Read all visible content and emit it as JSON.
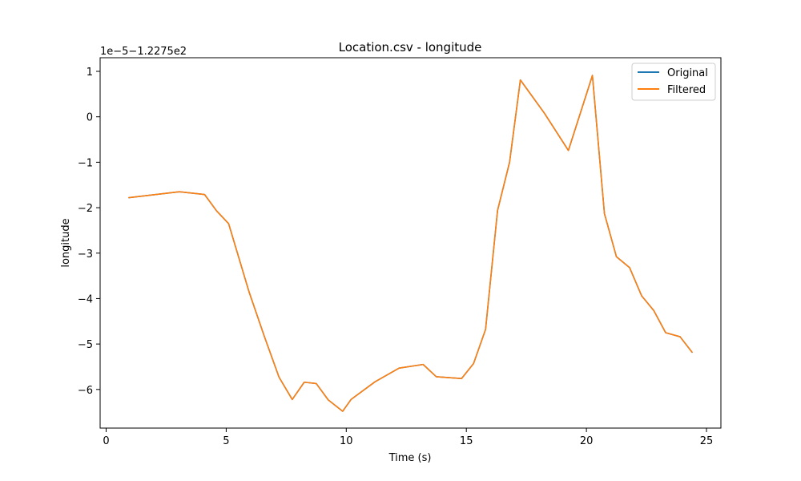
{
  "chart_data": {
    "type": "line",
    "title": "Location.csv - longitude",
    "xlabel": "Time (s)",
    "ylabel": "longitude",
    "offset_label": "1e−5−1.2275e2",
    "xlim": [
      -0.25,
      25.6
    ],
    "ylim": [
      -6.85,
      1.3
    ],
    "x_ticks": [
      0,
      5,
      10,
      15,
      20,
      25
    ],
    "x_tick_labels": [
      "0",
      "5",
      "10",
      "15",
      "20",
      "25"
    ],
    "y_ticks": [
      1,
      0,
      -1,
      -2,
      -3,
      -4,
      -5,
      -6
    ],
    "y_tick_labels": [
      "1",
      "0",
      "−1",
      "−2",
      "−3",
      "−4",
      "−5",
      "−6"
    ],
    "grid": false,
    "legend_position": "upper-right",
    "x": [
      0.95,
      3.05,
      4.1,
      4.6,
      5.1,
      5.95,
      6.6,
      7.2,
      7.75,
      8.25,
      8.75,
      9.25,
      9.85,
      10.2,
      11.2,
      12.2,
      13.2,
      13.75,
      14.8,
      15.3,
      15.8,
      16.3,
      16.8,
      17.25,
      18.25,
      19.25,
      20.25,
      20.75,
      21.25,
      21.8,
      22.3,
      22.8,
      23.3,
      23.9,
      24.4
    ],
    "series": [
      {
        "name": "Original",
        "color": "#1f77b4",
        "values": [
          -1.78,
          -1.65,
          -1.71,
          -2.07,
          -2.35,
          -3.85,
          -4.85,
          -5.73,
          -6.22,
          -5.84,
          -5.87,
          -6.23,
          -6.48,
          -6.22,
          -5.83,
          -5.53,
          -5.45,
          -5.72,
          -5.76,
          -5.43,
          -4.68,
          -2.06,
          -1.0,
          0.81,
          0.08,
          -0.74,
          0.91,
          -2.13,
          -3.08,
          -3.32,
          -3.94,
          -4.26,
          -4.75,
          -4.84,
          -5.18
        ]
      },
      {
        "name": "Filtered",
        "color": "#ff7f0e",
        "values": [
          -1.78,
          -1.65,
          -1.71,
          -2.07,
          -2.35,
          -3.85,
          -4.85,
          -5.73,
          -6.22,
          -5.84,
          -5.87,
          -6.23,
          -6.48,
          -6.22,
          -5.83,
          -5.53,
          -5.45,
          -5.72,
          -5.76,
          -5.43,
          -4.68,
          -2.06,
          -1.0,
          0.81,
          0.08,
          -0.74,
          0.91,
          -2.13,
          -3.08,
          -3.32,
          -3.94,
          -4.26,
          -4.75,
          -4.84,
          -5.18
        ]
      }
    ]
  }
}
